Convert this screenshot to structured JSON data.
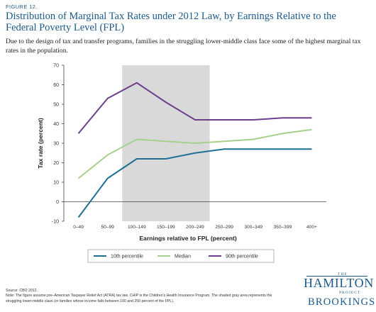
{
  "figure_label": "FIGURE 12.",
  "chart_data": {
    "type": "line",
    "title": "Distribution of Marginal Tax Rates under 2012 Law, by Earnings Relative to the Federal Poverty Level (FPL)",
    "subtitle": "Due to the design of tax and transfer programs, families in the struggling lower-middle class face some of the highest marginal tax rates in the population.",
    "xlabel": "Earnings relative to FPL (percent)",
    "ylabel": "Tax rate (percent)",
    "categories": [
      "0–49",
      "50–99",
      "100–149",
      "150–199",
      "200–249",
      "250–299",
      "300–349",
      "350–399",
      "400+"
    ],
    "ylim": [
      -10,
      70
    ],
    "yticks": [
      -10,
      0,
      10,
      20,
      30,
      40,
      50,
      60,
      70
    ],
    "shaded_range": [
      "100–149",
      "200–249"
    ],
    "series": [
      {
        "name": "10th percentile",
        "color": "#1f6f93",
        "values": [
          -8,
          12,
          22,
          22,
          25,
          27,
          27,
          27,
          27
        ]
      },
      {
        "name": "Median",
        "color": "#a8d08d",
        "values": [
          12,
          24,
          32,
          31,
          30,
          31,
          32,
          35,
          37
        ]
      },
      {
        "name": "90th percentile",
        "color": "#6b3f8c",
        "values": [
          35,
          53,
          61,
          51,
          42,
          42,
          42,
          43,
          43
        ]
      }
    ],
    "legend_position": "bottom-center",
    "grid": false
  },
  "source": "Source: CBO 2012.",
  "note": "Note: The figure assume pre–American Taxpayer Relief Act (ATRA) tax law. CHIP is the Children's Health Insurance Program. The shaded gray area represents the struggling lower-middle class (or families whose income falls between 100 and 250 percent of the FPL).",
  "logo": {
    "the": "THE",
    "hamilton": "HAMILTON",
    "project": "PROJECT",
    "brookings": "BROOKINGS"
  }
}
